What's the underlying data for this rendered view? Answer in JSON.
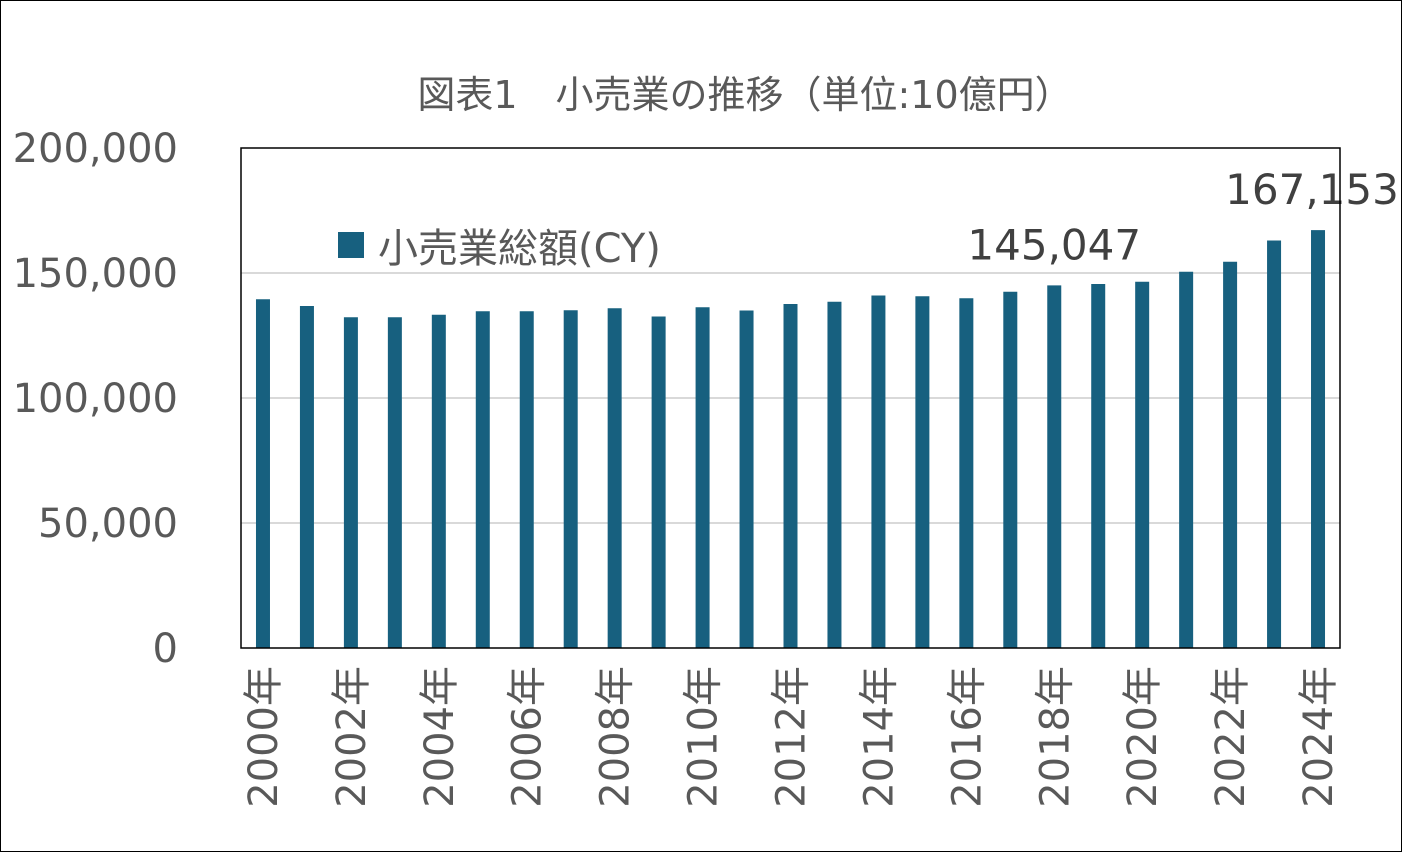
{
  "chart_data": {
    "type": "bar",
    "title": "図表1　小売業の推移（単位:10億円）",
    "xlabel": "",
    "ylabel": "",
    "ylim": [
      0,
      200000
    ],
    "yticks": [
      0,
      50000,
      100000,
      150000,
      200000
    ],
    "ytick_labels": [
      "0",
      "50,000",
      "100,000",
      "150,000",
      "200,000"
    ],
    "grid": true,
    "legend_position": "top-left",
    "bar_color": "#17607F",
    "categories": [
      "2000年",
      "2001年",
      "2002年",
      "2003年",
      "2004年",
      "2005年",
      "2006年",
      "2007年",
      "2008年",
      "2009年",
      "2010年",
      "2011年",
      "2012年",
      "2013年",
      "2014年",
      "2015年",
      "2016年",
      "2017年",
      "2018年",
      "2019年",
      "2020年",
      "2021年",
      "2022年",
      "2023年",
      "2024年"
    ],
    "xtick_labels": [
      "2000年",
      "2002年",
      "2004年",
      "2006年",
      "2008年",
      "2010年",
      "2012年",
      "2014年",
      "2016年",
      "2018年",
      "2020年",
      "2022年",
      "2024年"
    ],
    "series": [
      {
        "name": "小売業総額(CY)",
        "values": [
          139500,
          136800,
          132300,
          132300,
          133300,
          134700,
          134700,
          135100,
          135900,
          132600,
          136300,
          135000,
          137600,
          138500,
          141000,
          140700,
          139900,
          142500,
          145047,
          145600,
          146500,
          150500,
          154500,
          163000,
          167153
        ]
      }
    ],
    "data_labels": [
      {
        "category": "2018年",
        "text": "145,047"
      },
      {
        "category": "2024年",
        "text": "167,153"
      }
    ]
  }
}
